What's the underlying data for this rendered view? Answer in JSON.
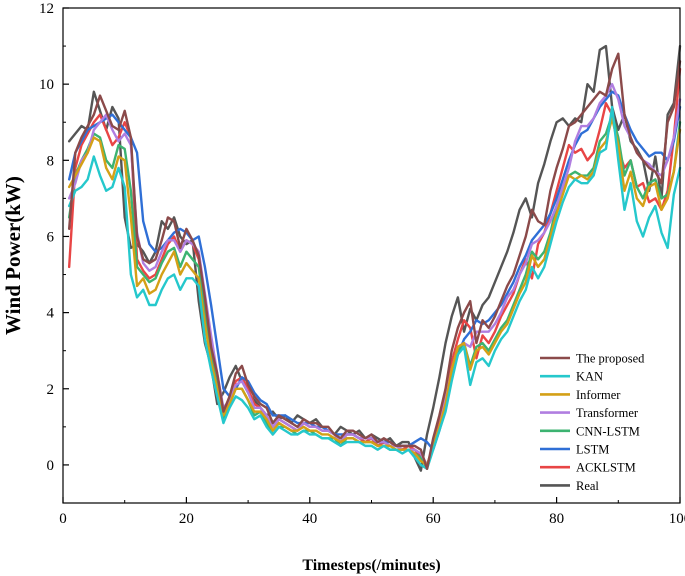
{
  "chart_data": {
    "type": "line",
    "title": "",
    "xlabel": "Timesteps(/minutes)",
    "ylabel": "Wind Power(kW)",
    "xlim": [
      0,
      100
    ],
    "ylim": [
      -1,
      12
    ],
    "xticks": [
      0,
      20,
      40,
      60,
      80,
      100
    ],
    "yticks": [
      0,
      2,
      4,
      6,
      8,
      10,
      12
    ],
    "grid": false,
    "legend_position": "bottom-right",
    "x": [
      1,
      2,
      3,
      4,
      5,
      6,
      7,
      8,
      9,
      10,
      11,
      12,
      13,
      14,
      15,
      16,
      17,
      18,
      19,
      20,
      21,
      22,
      23,
      24,
      25,
      26,
      27,
      28,
      29,
      30,
      31,
      32,
      33,
      34,
      35,
      36,
      37,
      38,
      39,
      40,
      41,
      42,
      43,
      44,
      45,
      46,
      47,
      48,
      49,
      50,
      51,
      52,
      53,
      54,
      55,
      56,
      57,
      58,
      59,
      60,
      61,
      62,
      63,
      64,
      65,
      66,
      67,
      68,
      69,
      70,
      71,
      72,
      73,
      74,
      75,
      76,
      77,
      78,
      79,
      80,
      81,
      82,
      83,
      84,
      85,
      86,
      87,
      88,
      89,
      90,
      91,
      92,
      93,
      94,
      95,
      96,
      97,
      98,
      99,
      100
    ],
    "series": [
      {
        "name": "The proposed",
        "color": "#8b4a4a",
        "values": [
          6.2,
          8.2,
          8.6,
          8.9,
          9.2,
          9.7,
          9.3,
          8.9,
          8.8,
          9.3,
          8.6,
          6.0,
          5.4,
          5.3,
          5.4,
          5.9,
          6.5,
          6.4,
          5.7,
          6.2,
          5.9,
          5.5,
          4.4,
          3.1,
          2.4,
          1.4,
          1.8,
          2.4,
          2.6,
          2.1,
          1.8,
          1.6,
          1.5,
          1.1,
          1.3,
          1.2,
          1.1,
          1.0,
          1.2,
          1.1,
          1.1,
          1.0,
          1.0,
          0.8,
          0.7,
          0.9,
          0.9,
          0.8,
          0.7,
          0.8,
          0.6,
          0.7,
          0.6,
          0.5,
          0.5,
          0.5,
          0.5,
          0.4,
          -0.1,
          0.7,
          1.3,
          2.0,
          3.0,
          3.6,
          4.0,
          4.3,
          3.2,
          3.8,
          3.6,
          3.9,
          4.3,
          4.7,
          5.0,
          5.5,
          6.0,
          6.7,
          6.4,
          6.3,
          7.2,
          7.8,
          8.3,
          8.9,
          9.0,
          9.2,
          9.4,
          9.6,
          9.8,
          9.7,
          10.4,
          10.8,
          9.2,
          8.6,
          8.2,
          8.0,
          7.8,
          7.7,
          7.4,
          9.0,
          9.4,
          10.6
        ]
      },
      {
        "name": "KAN",
        "color": "#25c8cc",
        "values": [
          6.8,
          7.2,
          7.3,
          7.5,
          8.1,
          7.6,
          7.2,
          7.3,
          7.8,
          7.3,
          5.0,
          4.4,
          4.6,
          4.2,
          4.2,
          4.6,
          4.9,
          5.0,
          4.6,
          4.9,
          4.9,
          4.7,
          3.3,
          2.5,
          1.8,
          1.1,
          1.5,
          1.8,
          1.7,
          1.5,
          1.2,
          1.3,
          1.0,
          0.8,
          1.0,
          0.9,
          0.8,
          0.8,
          0.9,
          0.8,
          0.8,
          0.7,
          0.7,
          0.6,
          0.5,
          0.6,
          0.6,
          0.6,
          0.5,
          0.5,
          0.4,
          0.5,
          0.4,
          0.4,
          0.3,
          0.4,
          0.2,
          0.0,
          -0.1,
          0.4,
          0.9,
          1.4,
          2.2,
          2.9,
          3.1,
          2.1,
          2.7,
          2.8,
          2.6,
          3.0,
          3.3,
          3.5,
          3.9,
          4.3,
          4.6,
          5.2,
          4.9,
          5.2,
          5.8,
          6.4,
          6.9,
          7.3,
          7.5,
          7.4,
          7.4,
          7.6,
          8.2,
          8.3,
          9.4,
          8.0,
          6.7,
          7.4,
          6.4,
          6.0,
          6.5,
          6.8,
          6.1,
          5.7,
          7.1,
          7.8
        ]
      },
      {
        "name": "Informer",
        "color": "#d4a017",
        "values": [
          7.3,
          7.6,
          7.9,
          8.2,
          8.6,
          8.5,
          7.8,
          7.5,
          8.1,
          8.0,
          6.5,
          4.7,
          4.9,
          4.5,
          4.6,
          5.0,
          5.3,
          5.6,
          5.0,
          5.3,
          5.1,
          4.9,
          3.7,
          2.7,
          2.0,
          1.3,
          1.6,
          2.0,
          2.0,
          1.7,
          1.4,
          1.4,
          1.2,
          0.9,
          1.1,
          1.0,
          0.9,
          0.9,
          1.0,
          0.9,
          0.9,
          0.8,
          0.8,
          0.7,
          0.6,
          0.7,
          0.7,
          0.6,
          0.6,
          0.6,
          0.5,
          0.5,
          0.5,
          0.4,
          0.4,
          0.4,
          0.3,
          0.1,
          0.0,
          0.5,
          1.0,
          1.6,
          2.5,
          3.1,
          3.2,
          2.5,
          3.0,
          3.1,
          2.9,
          3.2,
          3.5,
          3.7,
          4.1,
          4.5,
          4.8,
          5.5,
          5.2,
          5.4,
          6.0,
          6.6,
          7.1,
          7.6,
          7.5,
          7.6,
          7.5,
          7.7,
          8.3,
          8.5,
          9.1,
          8.4,
          7.2,
          7.7,
          7.0,
          6.8,
          7.3,
          7.4,
          6.7,
          7.0,
          7.7,
          8.8
        ]
      },
      {
        "name": "Transformer",
        "color": "#b07ee0",
        "values": [
          7.0,
          7.4,
          8.0,
          8.2,
          8.8,
          9.0,
          9.2,
          8.8,
          8.5,
          8.7,
          8.4,
          6.1,
          5.3,
          5.1,
          5.2,
          5.6,
          5.9,
          5.9,
          5.6,
          5.9,
          5.8,
          5.6,
          4.5,
          3.4,
          2.4,
          1.5,
          1.7,
          2.1,
          2.2,
          1.9,
          1.5,
          1.5,
          1.3,
          1.0,
          1.2,
          1.1,
          1.0,
          0.9,
          1.1,
          1.0,
          1.0,
          0.9,
          0.9,
          0.8,
          0.6,
          0.8,
          0.8,
          0.7,
          0.7,
          0.7,
          0.6,
          0.6,
          0.5,
          0.5,
          0.4,
          0.4,
          0.4,
          0.3,
          0.0,
          0.5,
          1.0,
          1.7,
          2.5,
          3.1,
          3.2,
          3.1,
          3.5,
          3.5,
          3.5,
          3.7,
          4.0,
          4.4,
          4.6,
          5.0,
          5.3,
          5.8,
          5.9,
          6.1,
          6.4,
          6.8,
          7.3,
          7.8,
          8.5,
          8.9,
          8.9,
          9.1,
          9.5,
          9.7,
          10.0,
          9.6,
          8.9,
          8.6,
          8.2,
          8.0,
          7.9,
          7.7,
          7.6,
          8.0,
          8.6,
          9.6
        ]
      },
      {
        "name": "CNN-LSTM",
        "color": "#3cb371",
        "values": [
          6.5,
          7.6,
          8.0,
          8.3,
          8.7,
          8.6,
          8.0,
          7.8,
          8.4,
          8.3,
          7.2,
          5.2,
          5.0,
          4.8,
          4.9,
          5.3,
          5.6,
          5.7,
          5.2,
          5.6,
          5.4,
          5.2,
          3.9,
          2.8,
          2.1,
          1.2,
          1.6,
          2.0,
          2.0,
          1.7,
          1.3,
          1.4,
          1.1,
          0.8,
          1.0,
          1.0,
          0.9,
          0.8,
          0.9,
          0.9,
          0.8,
          0.7,
          0.7,
          0.7,
          0.5,
          0.7,
          0.7,
          0.6,
          0.6,
          0.6,
          0.5,
          0.5,
          0.4,
          0.4,
          0.4,
          0.4,
          0.3,
          0.2,
          -0.1,
          0.5,
          1.0,
          1.6,
          2.4,
          3.0,
          3.2,
          2.6,
          3.1,
          3.2,
          3.0,
          3.3,
          3.6,
          3.8,
          4.2,
          4.6,
          5.0,
          5.6,
          5.4,
          5.6,
          6.1,
          6.8,
          7.3,
          7.6,
          7.7,
          7.6,
          7.6,
          7.8,
          8.5,
          8.7,
          9.2,
          8.6,
          7.6,
          8.0,
          7.3,
          7.0,
          7.4,
          7.5,
          7.0,
          7.1,
          7.7,
          9.0
        ]
      },
      {
        "name": "LSTM",
        "color": "#2f6fd6",
        "values": [
          7.5,
          8.2,
          8.5,
          8.8,
          8.9,
          9.0,
          9.1,
          9.2,
          9.0,
          8.8,
          8.6,
          8.2,
          6.4,
          5.8,
          5.6,
          5.7,
          5.9,
          6.1,
          6.2,
          6.1,
          5.9,
          6.0,
          5.2,
          4.2,
          3.1,
          2.0,
          1.8,
          2.0,
          2.3,
          2.2,
          1.9,
          1.7,
          1.6,
          1.3,
          1.3,
          1.3,
          1.2,
          1.1,
          1.1,
          1.1,
          1.0,
          1.0,
          0.9,
          0.8,
          0.8,
          0.8,
          0.8,
          0.7,
          0.7,
          0.7,
          0.6,
          0.6,
          0.6,
          0.5,
          0.5,
          0.5,
          0.6,
          0.7,
          0.6,
          0.4,
          0.9,
          1.5,
          2.3,
          2.9,
          3.3,
          3.5,
          3.8,
          3.7,
          3.8,
          4.0,
          4.2,
          4.5,
          4.8,
          5.2,
          5.5,
          5.9,
          6.1,
          6.3,
          6.6,
          7.0,
          7.5,
          8.0,
          8.4,
          8.7,
          8.8,
          9.1,
          9.4,
          9.6,
          9.8,
          9.7,
          9.2,
          8.8,
          8.5,
          8.3,
          8.1,
          8.2,
          8.2,
          8.0,
          8.5,
          9.4
        ]
      },
      {
        "name": "ACKLSTM",
        "color": "#e84545",
        "values": [
          5.2,
          7.8,
          8.4,
          8.7,
          9.0,
          9.2,
          8.8,
          8.4,
          8.6,
          9.0,
          8.6,
          5.4,
          5.1,
          4.9,
          5.0,
          5.4,
          5.8,
          6.0,
          5.6,
          5.9,
          5.8,
          5.4,
          4.2,
          3.0,
          2.3,
          1.3,
          1.7,
          2.2,
          2.3,
          2.0,
          1.6,
          1.5,
          1.3,
          1.0,
          1.2,
          1.1,
          1.0,
          0.9,
          1.1,
          1.0,
          1.0,
          0.9,
          0.9,
          0.8,
          0.6,
          0.8,
          0.8,
          0.7,
          0.6,
          0.7,
          0.5,
          0.6,
          0.5,
          0.5,
          0.4,
          0.5,
          0.4,
          0.2,
          -0.1,
          0.6,
          1.1,
          1.8,
          2.7,
          3.3,
          3.8,
          3.6,
          2.8,
          3.4,
          3.2,
          3.5,
          3.9,
          4.2,
          4.5,
          5.0,
          5.4,
          4.9,
          5.8,
          6.1,
          6.6,
          7.2,
          7.8,
          8.4,
          8.2,
          8.3,
          8.0,
          8.2,
          8.8,
          9.5,
          9.2,
          8.3,
          7.8,
          8.0,
          7.3,
          7.4,
          6.9,
          7.0,
          6.7,
          7.2,
          8.6,
          10.4
        ]
      },
      {
        "name": "Real",
        "color": "#555555",
        "values": [
          8.5,
          8.7,
          8.9,
          8.8,
          9.8,
          9.3,
          8.8,
          9.4,
          9.1,
          6.5,
          5.7,
          5.8,
          5.6,
          5.3,
          5.6,
          6.4,
          6.2,
          6.5,
          6.0,
          5.8,
          5.9,
          4.3,
          3.2,
          2.6,
          1.6,
          1.9,
          2.3,
          2.6,
          2.2,
          1.9,
          1.7,
          1.5,
          1.3,
          1.4,
          1.2,
          1.3,
          1.1,
          1.3,
          1.2,
          1.1,
          1.2,
          1.0,
          0.9,
          0.8,
          1.0,
          0.9,
          0.8,
          0.9,
          0.7,
          0.8,
          0.7,
          0.6,
          0.7,
          0.5,
          0.6,
          0.6,
          0.2,
          -0.15,
          0.8,
          1.5,
          2.3,
          3.2,
          3.9,
          4.4,
          3.5,
          4.1,
          3.8,
          4.2,
          4.4,
          4.8,
          5.2,
          5.6,
          6.1,
          6.7,
          7.0,
          6.5,
          7.4,
          7.9,
          8.5,
          9.0,
          9.1,
          8.9,
          9.1,
          9.0,
          10.0,
          9.8,
          10.9,
          11.0,
          9.4,
          8.8,
          9.2,
          8.5,
          8.3,
          8.0,
          7.2,
          8.1,
          7.0,
          9.2,
          9.5,
          11.0
        ]
      }
    ]
  }
}
